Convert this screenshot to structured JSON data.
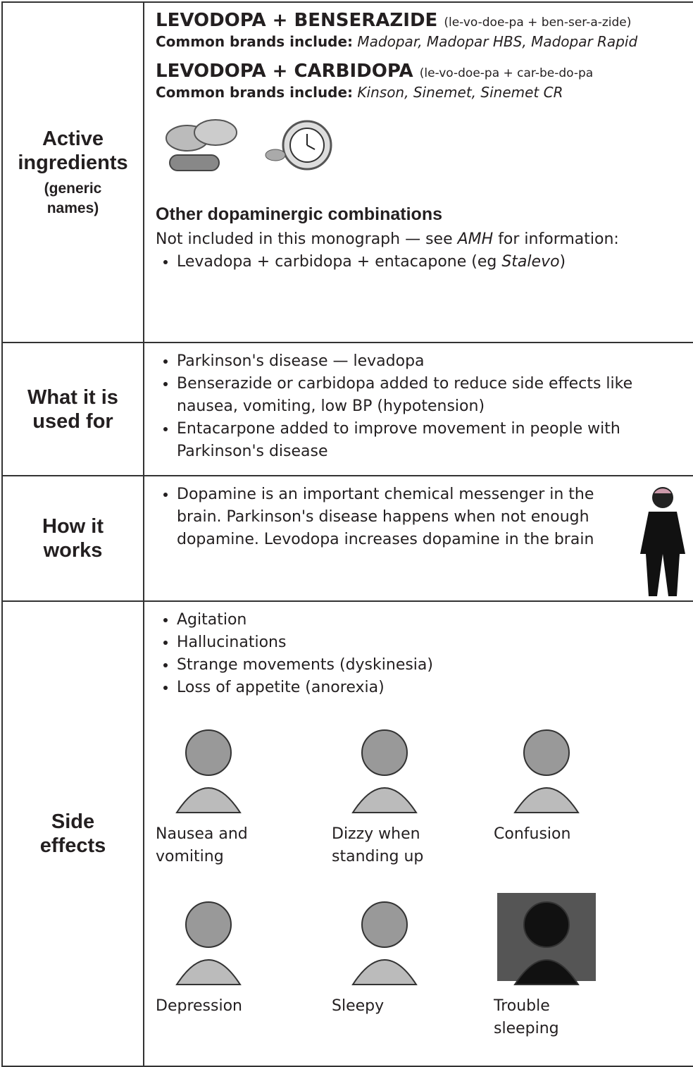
{
  "active_ingredients": {
    "heading": "Active ingredients",
    "subheading": "(generic names)",
    "combinations": [
      {
        "name": "LEVODOPA + BENSERAZIDE",
        "pronunciation": "(le-vo-doe-pa + ben-ser-a-zide)",
        "brands_label": "Common brands include:",
        "brands": "Madopar, Madopar HBS, Madopar Rapid"
      },
      {
        "name": "LEVODOPA + CARBIDOPA",
        "pronunciation": "(le-vo-doe-pa + car-be-do-pa",
        "brands_label": "Common brands include:",
        "brands": "Kinson, Sinemet, Sinemet CR"
      }
    ],
    "other": {
      "title": "Other dopaminergic combinations",
      "note_before": "Not included in this monograph — see",
      "note_ref": "AMH",
      "note_after": "for information:",
      "item_text": "Levadopa + carbidopa + entacapone (eg",
      "item_brand": "Stalevo",
      "item_end": ")"
    }
  },
  "used_for": {
    "heading": "What it is used for",
    "items": [
      "Parkinson's disease — levadopa",
      "Benserazide or carbidopa added to reduce side effects like nausea, vomiting, low BP (hypotension)",
      "Entacarpone added to improve movement in people with Parkinson's disease"
    ]
  },
  "how_it_works": {
    "heading": "How it works",
    "items": [
      "Dopamine is an important chemical messenger in the brain. Parkinson's disease happens when not enough dopamine. Levodopa increases dopamine in the brain"
    ]
  },
  "side_effects": {
    "heading": "Side effects",
    "items": [
      "Agitation",
      "Hallucinations",
      "Strange movements (dyskinesia)",
      "Loss of appetite (anorexia)"
    ],
    "pictures": [
      "Nausea and vomiting",
      "Dizzy when standing up",
      "Confusion",
      "Depression",
      "Sleepy",
      "Trouble sleeping"
    ]
  }
}
